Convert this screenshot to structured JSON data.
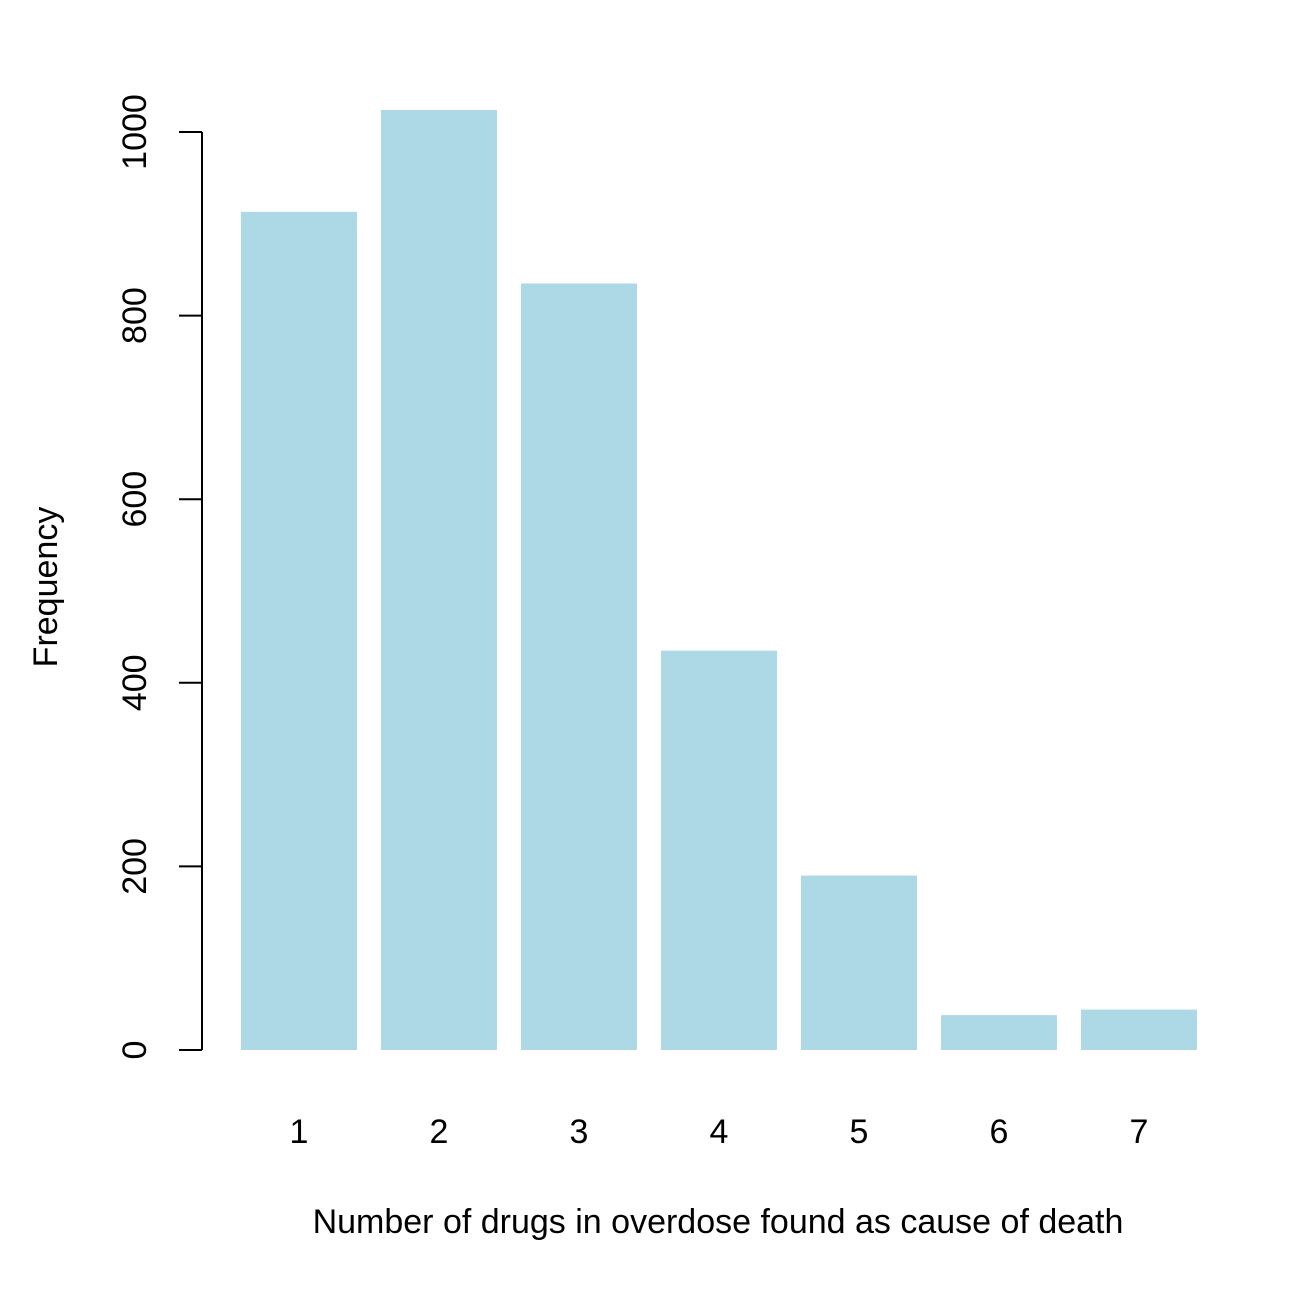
{
  "chart_data": {
    "type": "bar",
    "title": "",
    "xlabel": "Number of drugs in overdose found as cause of death",
    "ylabel": "Frequency",
    "categories": [
      "1",
      "2",
      "3",
      "4",
      "5",
      "6",
      "7"
    ],
    "values": [
      913,
      1024,
      835,
      435,
      190,
      38,
      44
    ],
    "ylim": [
      0,
      1000
    ],
    "yticks": [
      "0",
      "200",
      "400",
      "600",
      "800",
      "1000"
    ],
    "grid": false,
    "legend": "none",
    "bar_color": "#add8e6",
    "axis_color": "#000000"
  }
}
